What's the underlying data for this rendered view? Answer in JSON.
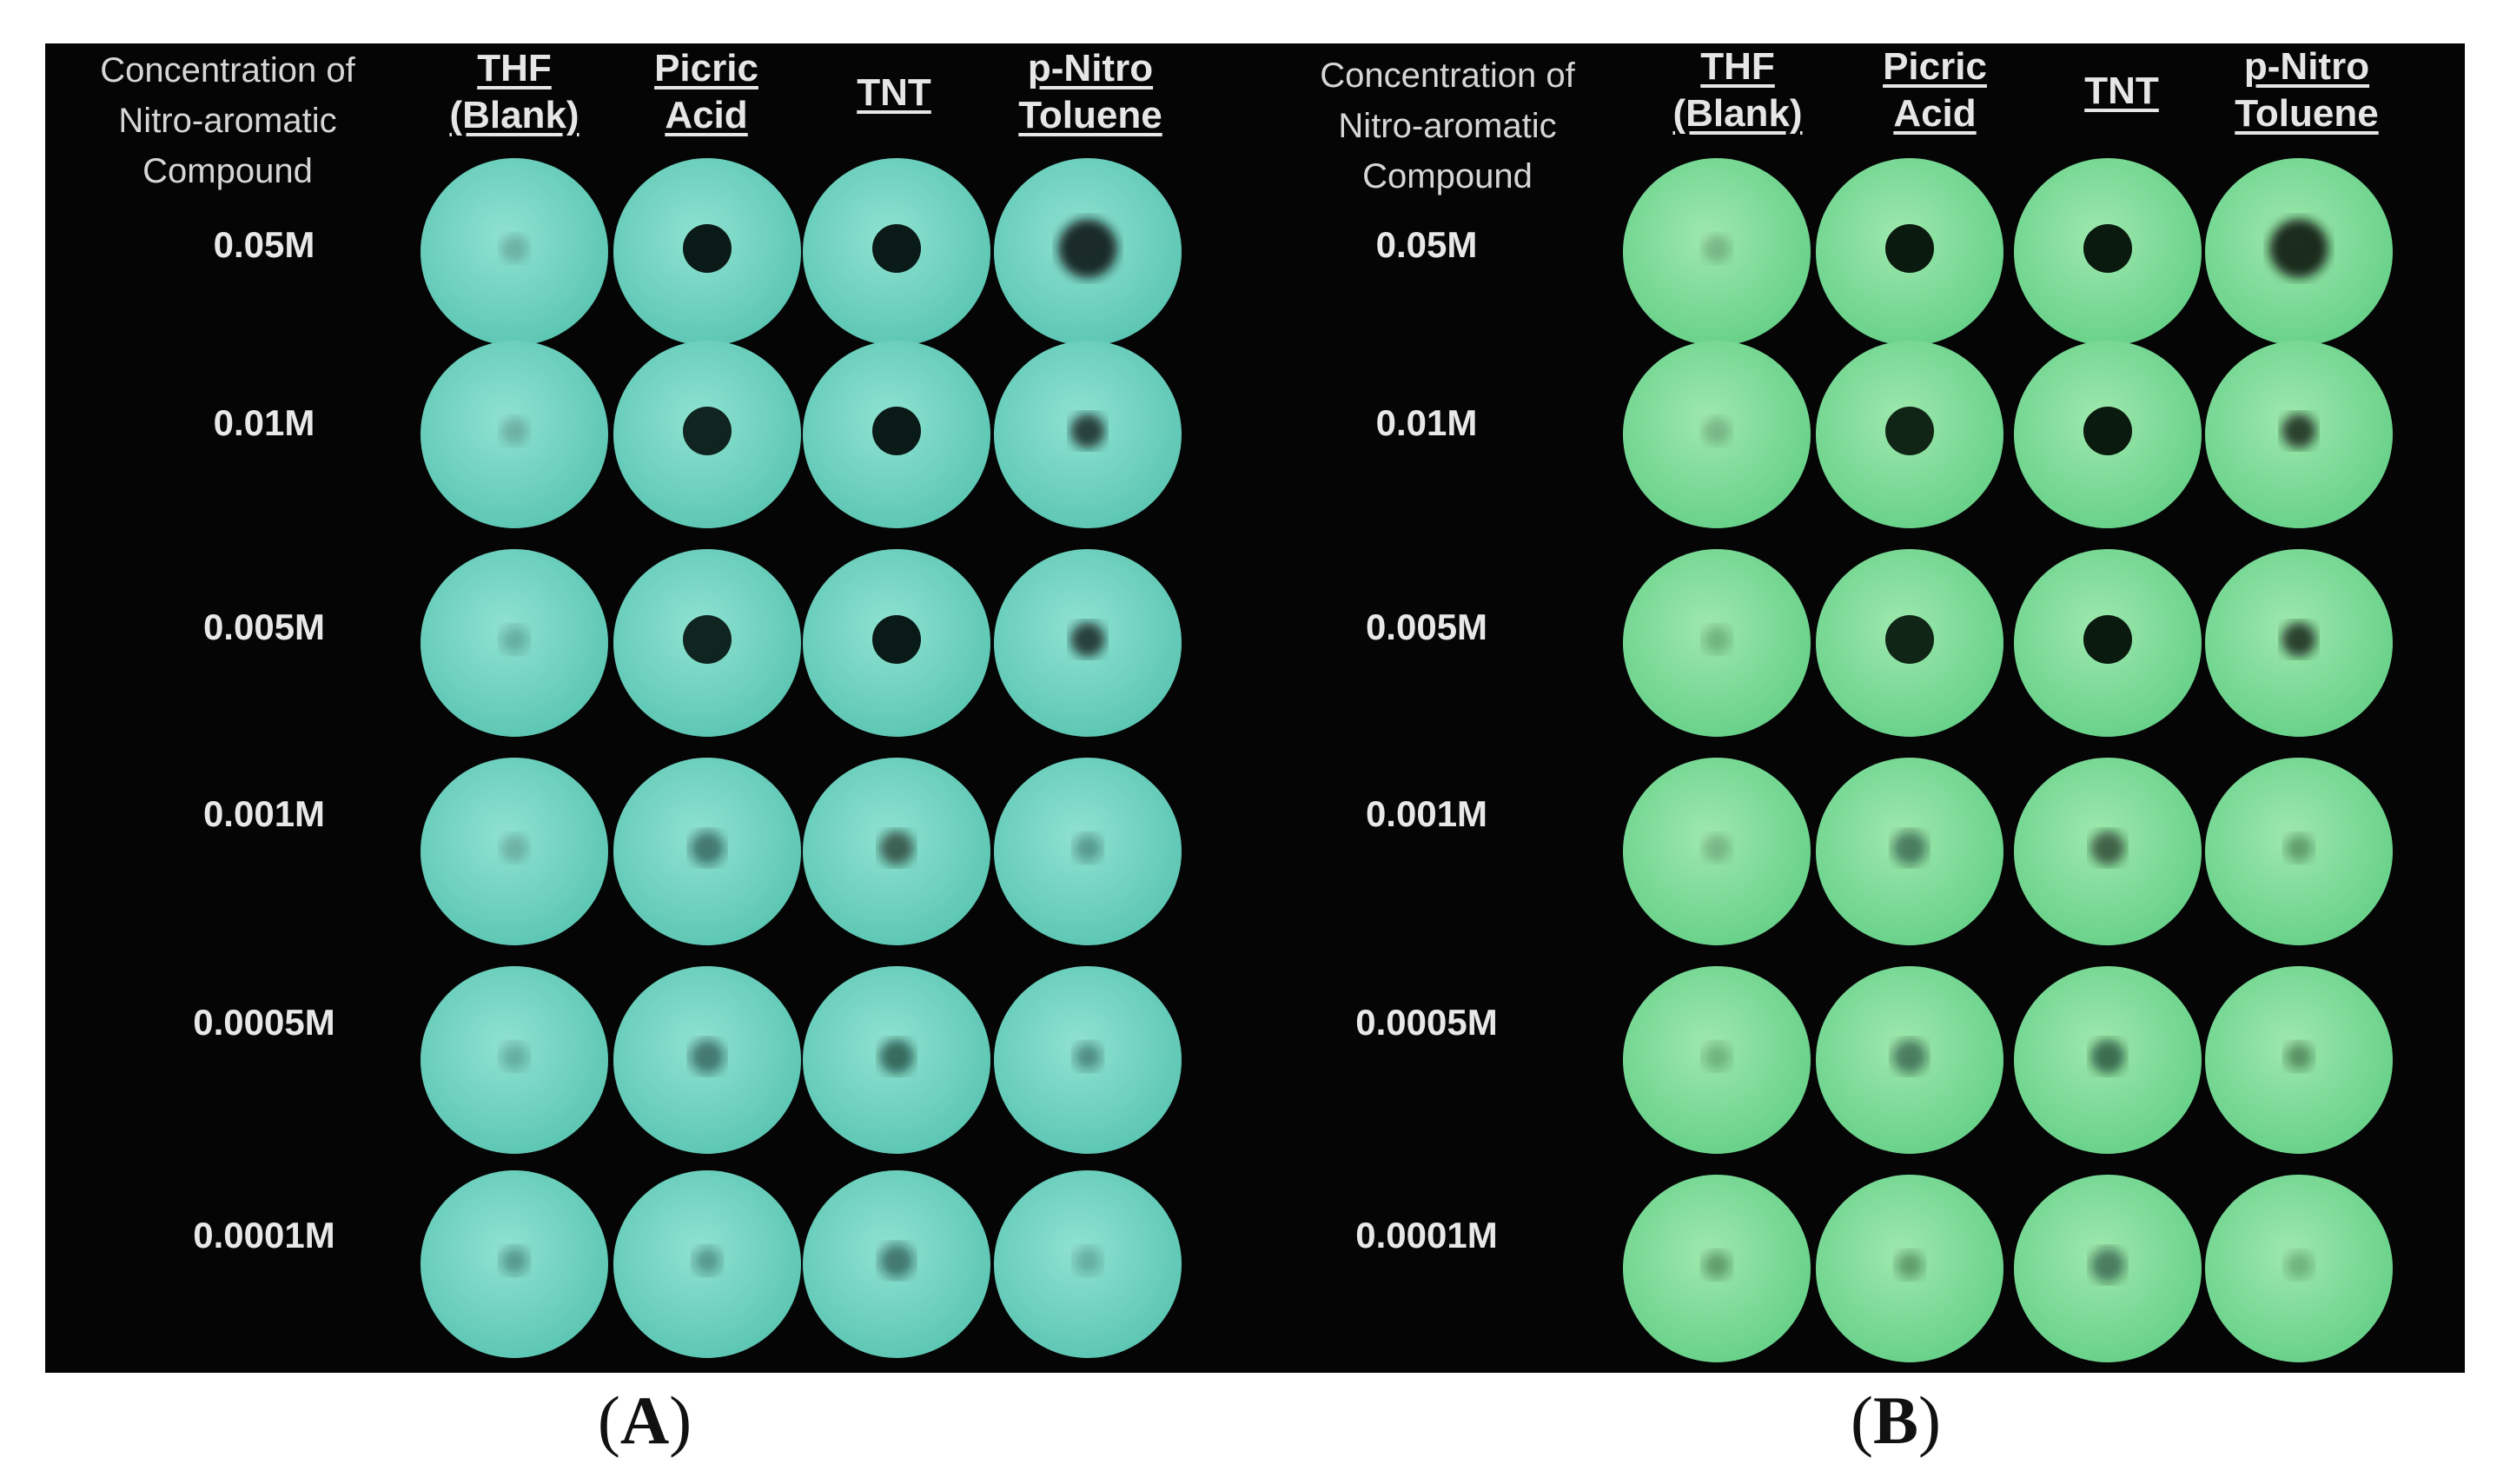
{
  "figure": {
    "row_header_lines": [
      "Concentration of",
      "Nitro-aromatic",
      "Compound"
    ],
    "columns": [
      {
        "lines": [
          "THF",
          "(Blank)"
        ]
      },
      {
        "lines": [
          "Picric",
          "Acid"
        ]
      },
      {
        "lines": [
          "TNT"
        ]
      },
      {
        "lines": [
          "p-Nitro",
          "Toluene"
        ]
      }
    ],
    "rows": [
      "0.05M",
      "0.01M",
      "0.005M",
      "0.001M",
      "0.0005M",
      "0.0001M"
    ],
    "spot_darkness": [
      [
        0.15,
        0.95,
        0.95,
        0.85
      ],
      [
        0.15,
        0.9,
        0.95,
        0.75
      ],
      [
        0.2,
        0.9,
        0.95,
        0.75
      ],
      [
        0.15,
        0.45,
        0.6,
        0.3
      ],
      [
        0.2,
        0.45,
        0.55,
        0.35
      ],
      [
        0.3,
        0.3,
        0.45,
        0.2
      ]
    ]
  },
  "panels": [
    {
      "id": "A",
      "label_open": "(",
      "label_letter": "A",
      "label_close": ")",
      "disc_color": "#58c4b0",
      "disc_light": "#8fe2d2",
      "spot_color": "#0a1a16"
    },
    {
      "id": "B",
      "label_open": "(",
      "label_letter": "B",
      "label_close": ")",
      "disc_color": "#63cf86",
      "disc_light": "#9ee8ae",
      "spot_color": "#0a1a0e"
    }
  ]
}
